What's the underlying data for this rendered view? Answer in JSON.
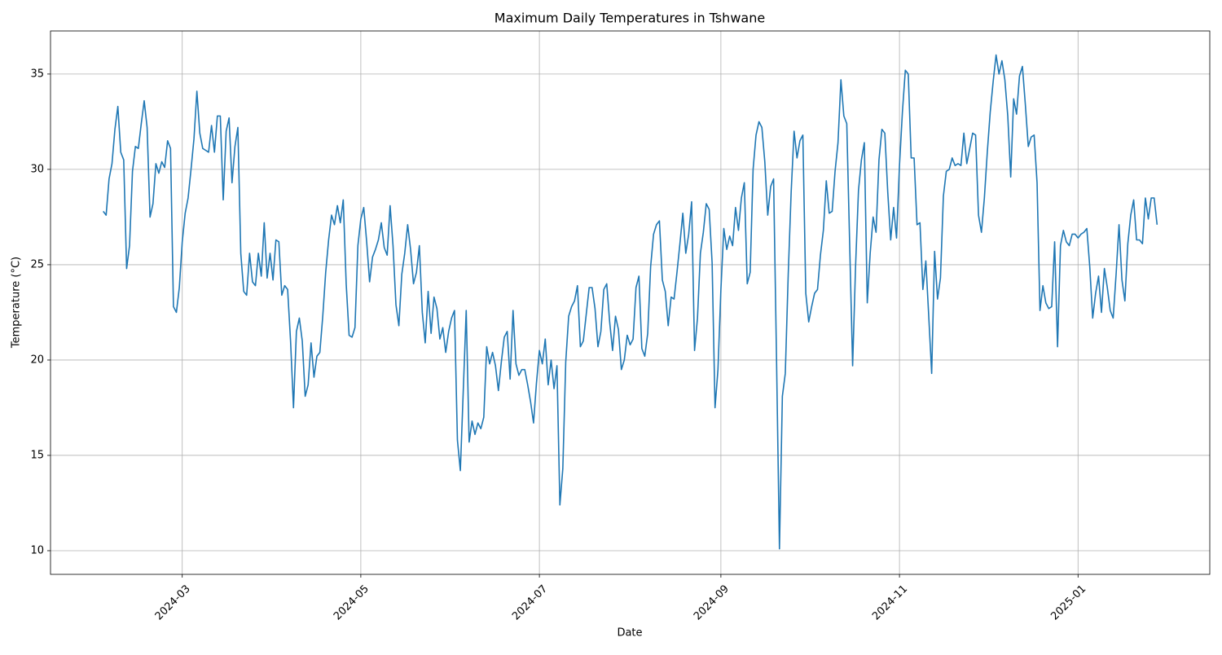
{
  "chart_data": {
    "type": "line",
    "title": "Maximum Daily Temperatures in Tshwane",
    "xlabel": "Date",
    "ylabel": "Temperature (°C)",
    "color": "#1f77b4",
    "grid": true,
    "xlim": [
      "2024-01-16",
      "2025-02-15"
    ],
    "xticks": [
      "2024-03",
      "2024-05",
      "2024-07",
      "2024-09",
      "2024-11",
      "2025-01"
    ],
    "ylim": [
      8.76,
      37.26
    ],
    "yticks": [
      10,
      15,
      20,
      25,
      30,
      35
    ],
    "x": [
      "2024-02-03",
      "2024-02-04",
      "2024-02-05",
      "2024-02-06",
      "2024-02-07",
      "2024-02-08",
      "2024-02-09",
      "2024-02-10",
      "2024-02-11",
      "2024-02-12",
      "2024-02-13",
      "2024-02-14",
      "2024-02-15",
      "2024-02-16",
      "2024-02-17",
      "2024-02-18",
      "2024-02-19",
      "2024-02-20",
      "2024-02-21",
      "2024-02-22",
      "2024-02-23",
      "2024-02-24",
      "2024-02-25",
      "2024-02-26",
      "2024-02-27",
      "2024-02-28",
      "2024-02-29",
      "2024-03-01",
      "2024-03-02",
      "2024-03-03",
      "2024-03-04",
      "2024-03-05",
      "2024-03-06",
      "2024-03-07",
      "2024-03-08",
      "2024-03-09",
      "2024-03-10",
      "2024-03-11",
      "2024-03-12",
      "2024-03-13",
      "2024-03-14",
      "2024-03-15",
      "2024-03-16",
      "2024-03-17",
      "2024-03-18",
      "2024-03-19",
      "2024-03-20",
      "2024-03-21",
      "2024-03-22",
      "2024-03-23",
      "2024-03-24",
      "2024-03-25",
      "2024-03-26",
      "2024-03-27",
      "2024-03-28",
      "2024-03-29",
      "2024-03-30",
      "2024-03-31",
      "2024-04-01",
      "2024-04-02",
      "2024-04-03",
      "2024-04-04",
      "2024-04-05",
      "2024-04-06",
      "2024-04-07",
      "2024-04-08",
      "2024-04-09",
      "2024-04-10",
      "2024-04-11",
      "2024-04-12",
      "2024-04-13",
      "2024-04-14",
      "2024-04-15",
      "2024-04-16",
      "2024-04-17",
      "2024-04-18",
      "2024-04-19",
      "2024-04-20",
      "2024-04-21",
      "2024-04-22",
      "2024-04-23",
      "2024-04-24",
      "2024-04-25",
      "2024-04-26",
      "2024-04-27",
      "2024-04-28",
      "2024-04-29",
      "2024-04-30",
      "2024-05-01",
      "2024-05-02",
      "2024-05-03",
      "2024-05-04",
      "2024-05-05",
      "2024-05-06",
      "2024-05-07",
      "2024-05-08",
      "2024-05-09",
      "2024-05-10",
      "2024-05-11",
      "2024-05-12",
      "2024-05-13",
      "2024-05-14",
      "2024-05-15",
      "2024-05-16",
      "2024-05-17",
      "2024-05-18",
      "2024-05-19",
      "2024-05-20",
      "2024-05-21",
      "2024-05-22",
      "2024-05-23",
      "2024-05-24",
      "2024-05-25",
      "2024-05-26",
      "2024-05-27",
      "2024-05-28",
      "2024-05-29",
      "2024-05-30",
      "2024-05-31",
      "2024-06-01",
      "2024-06-02",
      "2024-06-03",
      "2024-06-04",
      "2024-06-05",
      "2024-06-06",
      "2024-06-07",
      "2024-06-08",
      "2024-06-09",
      "2024-06-10",
      "2024-06-11",
      "2024-06-12",
      "2024-06-13",
      "2024-06-14",
      "2024-06-15",
      "2024-06-16",
      "2024-06-17",
      "2024-06-18",
      "2024-06-19",
      "2024-06-20",
      "2024-06-21",
      "2024-06-22",
      "2024-06-23",
      "2024-06-24",
      "2024-06-25",
      "2024-06-26",
      "2024-06-27",
      "2024-06-28",
      "2024-06-29",
      "2024-06-30",
      "2024-07-01",
      "2024-07-02",
      "2024-07-03",
      "2024-07-04",
      "2024-07-05",
      "2024-07-06",
      "2024-07-07",
      "2024-07-08",
      "2024-07-09",
      "2024-07-10",
      "2024-07-11",
      "2024-07-12",
      "2024-07-13",
      "2024-07-14",
      "2024-07-15",
      "2024-07-16",
      "2024-07-17",
      "2024-07-18",
      "2024-07-19",
      "2024-07-20",
      "2024-07-21",
      "2024-07-22",
      "2024-07-23",
      "2024-07-24",
      "2024-07-25",
      "2024-07-26",
      "2024-07-27",
      "2024-07-28",
      "2024-07-29",
      "2024-07-30",
      "2024-07-31",
      "2024-08-01",
      "2024-08-02",
      "2024-08-03",
      "2024-08-04",
      "2024-08-05",
      "2024-08-06",
      "2024-08-07",
      "2024-08-08",
      "2024-08-09",
      "2024-08-10",
      "2024-08-11",
      "2024-08-12",
      "2024-08-13",
      "2024-08-14",
      "2024-08-15",
      "2024-08-16",
      "2024-08-17",
      "2024-08-18",
      "2024-08-19",
      "2024-08-20",
      "2024-08-21",
      "2024-08-22",
      "2024-08-23",
      "2024-08-24",
      "2024-08-25",
      "2024-08-26",
      "2024-08-27",
      "2024-08-28",
      "2024-08-29",
      "2024-08-30",
      "2024-08-31",
      "2024-09-01",
      "2024-09-02",
      "2024-09-03",
      "2024-09-04",
      "2024-09-05",
      "2024-09-06",
      "2024-09-07",
      "2024-09-08",
      "2024-09-09",
      "2024-09-10",
      "2024-09-11",
      "2024-09-12",
      "2024-09-13",
      "2024-09-14",
      "2024-09-15",
      "2024-09-16",
      "2024-09-17",
      "2024-09-18",
      "2024-09-19",
      "2024-09-20",
      "2024-09-21",
      "2024-09-22",
      "2024-09-23",
      "2024-09-24",
      "2024-09-25",
      "2024-09-26",
      "2024-09-27",
      "2024-09-28",
      "2024-09-29",
      "2024-09-30",
      "2024-10-01",
      "2024-10-02",
      "2024-10-03",
      "2024-10-04",
      "2024-10-05",
      "2024-10-06",
      "2024-10-07",
      "2024-10-08",
      "2024-10-09",
      "2024-10-10",
      "2024-10-11",
      "2024-10-12",
      "2024-10-13",
      "2024-10-14",
      "2024-10-15",
      "2024-10-16",
      "2024-10-17",
      "2024-10-18",
      "2024-10-19",
      "2024-10-20",
      "2024-10-21",
      "2024-10-22",
      "2024-10-23",
      "2024-10-24",
      "2024-10-25",
      "2024-10-26",
      "2024-10-27",
      "2024-10-28",
      "2024-10-29",
      "2024-10-30",
      "2024-10-31",
      "2024-11-01",
      "2024-11-02",
      "2024-11-03",
      "2024-11-04",
      "2024-11-05",
      "2024-11-06",
      "2024-11-07",
      "2024-11-08",
      "2024-11-09",
      "2024-11-10",
      "2024-11-11",
      "2024-11-12",
      "2024-11-13",
      "2024-11-14",
      "2024-11-15",
      "2024-11-16",
      "2024-11-17",
      "2024-11-18",
      "2024-11-19",
      "2024-11-20",
      "2024-11-21",
      "2024-11-22",
      "2024-11-23",
      "2024-11-24",
      "2024-11-25",
      "2024-11-26",
      "2024-11-27",
      "2024-11-28",
      "2024-11-29",
      "2024-11-30",
      "2024-12-01",
      "2024-12-02",
      "2024-12-03",
      "2024-12-04",
      "2024-12-05",
      "2024-12-06",
      "2024-12-07",
      "2024-12-08",
      "2024-12-09",
      "2024-12-10",
      "2024-12-11",
      "2024-12-12",
      "2024-12-13",
      "2024-12-14",
      "2024-12-15",
      "2024-12-16",
      "2024-12-17",
      "2024-12-18",
      "2024-12-19",
      "2024-12-20",
      "2024-12-21",
      "2024-12-22",
      "2024-12-23",
      "2024-12-24",
      "2024-12-25",
      "2024-12-26",
      "2024-12-27",
      "2024-12-28",
      "2024-12-29",
      "2024-12-30",
      "2024-12-31",
      "2025-01-01",
      "2025-01-02",
      "2025-01-03",
      "2025-01-04",
      "2025-01-05",
      "2025-01-06",
      "2025-01-07",
      "2025-01-08",
      "2025-01-09",
      "2025-01-10",
      "2025-01-11",
      "2025-01-12",
      "2025-01-13",
      "2025-01-14",
      "2025-01-15",
      "2025-01-16",
      "2025-01-17",
      "2025-01-18",
      "2025-01-19",
      "2025-01-20",
      "2025-01-21",
      "2025-01-22",
      "2025-01-23",
      "2025-01-24",
      "2025-01-25",
      "2025-01-26",
      "2025-01-27",
      "2025-01-28"
    ],
    "values": [
      27.8,
      27.6,
      29.5,
      30.3,
      32.1,
      33.3,
      30.9,
      30.5,
      24.8,
      26.0,
      29.9,
      31.2,
      31.1,
      32.4,
      33.6,
      32.2,
      27.5,
      28.2,
      30.3,
      29.8,
      30.4,
      30.1,
      31.5,
      31.1,
      22.8,
      22.5,
      23.8,
      26.2,
      27.7,
      28.5,
      30.0,
      31.6,
      34.1,
      31.9,
      31.1,
      31.0,
      30.9,
      32.3,
      30.9,
      32.8,
      32.8,
      28.4,
      32.0,
      32.7,
      29.3,
      31.2,
      32.2,
      25.6,
      23.6,
      23.4,
      25.6,
      24.1,
      23.9,
      25.6,
      24.4,
      27.2,
      24.3,
      25.6,
      24.2,
      26.3,
      26.2,
      23.4,
      23.9,
      23.7,
      21.0,
      17.5,
      21.5,
      22.2,
      21.0,
      18.1,
      18.7,
      20.9,
      19.1,
      20.2,
      20.4,
      22.3,
      24.6,
      26.3,
      27.6,
      27.1,
      28.1,
      27.2,
      28.4,
      24.0,
      21.3,
      21.2,
      21.7,
      26.0,
      27.4,
      28.0,
      26.2,
      24.1,
      25.4,
      25.8,
      26.3,
      27.2,
      25.9,
      25.5,
      28.1,
      26.0,
      22.9,
      21.8,
      24.5,
      25.6,
      27.1,
      25.8,
      24.0,
      24.6,
      26.0,
      22.5,
      20.9,
      23.6,
      21.4,
      23.3,
      22.7,
      21.1,
      21.7,
      20.4,
      21.5,
      22.2,
      22.6,
      15.8,
      14.2,
      18.4,
      22.6,
      15.7,
      16.8,
      16.1,
      16.7,
      16.4,
      17.0,
      20.7,
      19.8,
      20.4,
      19.7,
      18.4,
      19.9,
      21.2,
      21.5,
      19.0,
      22.6,
      19.8,
      19.2,
      19.5,
      19.5,
      18.7,
      17.8,
      16.7,
      18.8,
      20.5,
      19.8,
      21.1,
      18.7,
      20.0,
      18.5,
      19.7,
      12.4,
      14.3,
      19.9,
      22.3,
      22.8,
      23.1,
      23.9,
      20.7,
      21.0,
      22.4,
      23.8,
      23.8,
      22.7,
      20.7,
      21.5,
      23.7,
      24.0,
      22.0,
      20.5,
      22.3,
      21.6,
      19.5,
      20.0,
      21.3,
      20.8,
      21.1,
      23.8,
      24.4,
      20.6,
      20.2,
      21.4,
      24.9,
      26.6,
      27.1,
      27.3,
      24.2,
      23.6,
      21.8,
      23.3,
      23.2,
      24.6,
      26.1,
      27.7,
      25.6,
      26.6,
      28.3,
      20.5,
      22.2,
      25.6,
      26.7,
      28.2,
      27.9,
      25.1,
      17.5,
      19.5,
      23.7,
      26.9,
      25.8,
      26.5,
      26.0,
      28.0,
      26.8,
      28.5,
      29.3,
      24.0,
      24.6,
      30.0,
      31.8,
      32.5,
      32.2,
      30.4,
      27.6,
      29.1,
      29.5,
      20.1,
      10.1,
      18.1,
      19.3,
      24.5,
      28.8,
      32.0,
      30.6,
      31.5,
      31.8,
      23.5,
      22.0,
      22.8,
      23.5,
      23.7,
      25.5,
      26.8,
      29.4,
      27.7,
      27.8,
      29.9,
      31.4,
      34.7,
      32.8,
      32.4,
      26.0,
      19.7,
      24.9,
      28.9,
      30.5,
      31.4,
      23.0,
      25.6,
      27.5,
      26.7,
      30.5,
      32.1,
      31.9,
      28.8,
      26.3,
      28.0,
      26.4,
      30.2,
      33.0,
      35.2,
      35.0,
      30.6,
      30.6,
      27.1,
      27.2,
      23.7,
      25.2,
      22.3,
      19.3,
      25.7,
      23.2,
      24.3,
      28.6,
      29.9,
      30.0,
      30.6,
      30.2,
      30.3,
      30.2,
      31.9,
      30.3,
      31.1,
      31.9,
      31.8,
      27.6,
      26.7,
      28.5,
      30.9,
      33.0,
      34.6,
      36.0,
      35.0,
      35.7,
      34.7,
      32.8,
      29.6,
      33.7,
      32.9,
      34.9,
      35.4,
      33.4,
      31.2,
      31.7,
      31.8,
      29.3,
      22.6,
      23.9,
      23.0,
      22.7,
      22.8,
      26.2,
      20.7,
      26.0,
      26.8,
      26.2,
      26.0,
      26.6,
      26.6,
      26.4,
      26.6,
      26.7,
      26.9,
      24.9,
      22.2,
      23.5,
      24.4,
      22.5,
      24.8,
      23.8,
      22.6,
      22.2,
      24.5,
      27.1,
      24.2,
      23.1,
      26.1,
      27.6,
      28.4,
      26.3,
      26.3,
      26.1,
      28.5,
      27.4,
      28.5,
      28.5,
      27.1
    ]
  }
}
